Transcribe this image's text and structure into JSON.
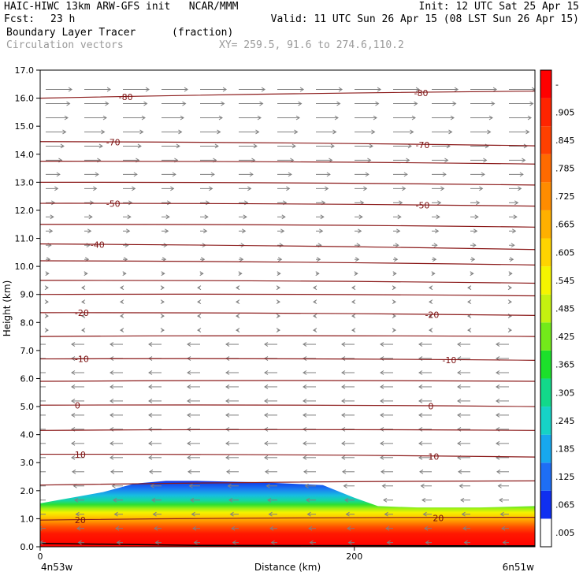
{
  "header": {
    "title_left": "HAIC-HIWC 13km ARW-GFS init   NCAR/MMM",
    "init": "Init: 12 UTC Sat 25 Apr 15",
    "fcst_label": "Fcst:",
    "fcst_value": "23 h",
    "valid": "Valid: 11 UTC Sun 26 Apr 15 (08 LST Sun 26 Apr 15)",
    "field_name": "Boundary Layer Tracer",
    "field_units": "(fraction)",
    "vector_name": "Circulation vectors",
    "xy_text": "XY= 259.5, 91.6 to 274.6,110.2"
  },
  "chart_data": {
    "type": "heatmap",
    "ylabel": "Height (km)",
    "xlabel": "Distance (km)",
    "ylim": [
      0,
      17
    ],
    "xlim": [
      0,
      315
    ],
    "y_ticks": [
      "0.0",
      "1.0",
      "2.0",
      "3.0",
      "4.0",
      "5.0",
      "6.0",
      "7.0",
      "8.0",
      "9.0",
      "10.0",
      "11.0",
      "12.0",
      "13.0",
      "14.0",
      "15.0",
      "16.0",
      "17.0"
    ],
    "x_ticks": [
      {
        "value": 0,
        "label": "0"
      },
      {
        "value": 200,
        "label": "200"
      }
    ],
    "x_endpoints": {
      "left": "4n53w",
      "right": "6n51w"
    },
    "colorbar": {
      "labels": [
        ".005",
        ".065",
        ".125",
        ".185",
        ".245",
        ".305",
        ".365",
        ".425",
        ".485",
        ".545",
        ".605",
        ".665",
        ".725",
        ".785",
        ".845",
        ".905",
        "-"
      ],
      "colors": [
        "#ffffff",
        "#0f2ff0",
        "#1e6ef5",
        "#17a8ee",
        "#16d3c6",
        "#12d98a",
        "#1ce02b",
        "#73ea1a",
        "#c5f210",
        "#f5f500",
        "#ffd400",
        "#ffb000",
        "#ff8c00",
        "#ff6a00",
        "#ff4000",
        "#ff2400",
        "#ff0000"
      ]
    },
    "tracer_top_km": [
      {
        "x": 0,
        "top": 1.55
      },
      {
        "x": 20,
        "top": 1.75
      },
      {
        "x": 40,
        "top": 1.95
      },
      {
        "x": 60,
        "top": 2.25
      },
      {
        "x": 80,
        "top": 2.35
      },
      {
        "x": 100,
        "top": 2.35
      },
      {
        "x": 140,
        "top": 2.3
      },
      {
        "x": 180,
        "top": 2.2
      },
      {
        "x": 200,
        "top": 1.75
      },
      {
        "x": 215,
        "top": 1.45
      },
      {
        "x": 240,
        "top": 1.4
      },
      {
        "x": 280,
        "top": 1.4
      },
      {
        "x": 315,
        "top": 1.45
      }
    ],
    "contours": [
      {
        "value": "80",
        "h_left": 16.0,
        "h_right": 16.25,
        "labels": [
          {
            "x": 50,
            "text": "-80"
          },
          {
            "x": 238,
            "text": "-80"
          }
        ]
      },
      {
        "value": "70",
        "h_left": 14.45,
        "h_right": 14.3,
        "labels": [
          {
            "x": 42,
            "text": "-70"
          },
          {
            "x": 239,
            "text": "-70"
          }
        ]
      },
      {
        "value": "60",
        "h_left": 13.75,
        "h_right": 13.65,
        "labels": []
      },
      {
        "value": "60b",
        "h_left": 13.0,
        "h_right": 12.9,
        "labels": []
      },
      {
        "value": "50",
        "h_left": 12.25,
        "h_right": 12.15,
        "labels": [
          {
            "x": 42,
            "text": "-50"
          },
          {
            "x": 239,
            "text": "-50"
          }
        ]
      },
      {
        "value": "45",
        "h_left": 11.5,
        "h_right": 11.4,
        "labels": []
      },
      {
        "value": "40",
        "h_left": 10.8,
        "h_right": 10.6,
        "labels": [
          {
            "x": 32,
            "text": "-40"
          }
        ]
      },
      {
        "value": "35",
        "h_left": 10.2,
        "h_right": 10.05,
        "labels": []
      },
      {
        "value": "30",
        "h_left": 9.5,
        "h_right": 9.4,
        "labels": []
      },
      {
        "value": "25",
        "h_left": 9.0,
        "h_right": 8.95,
        "labels": []
      },
      {
        "value": "20",
        "h_left": 8.35,
        "h_right": 8.25,
        "labels": [
          {
            "x": 22,
            "text": "-20"
          },
          {
            "x": 245,
            "text": "-20"
          }
        ]
      },
      {
        "value": "15",
        "h_left": 7.5,
        "h_right": 7.5,
        "labels": []
      },
      {
        "value": "10",
        "h_left": 6.7,
        "h_right": 6.65,
        "labels": [
          {
            "x": 22,
            "text": "-10"
          },
          {
            "x": 256,
            "text": "-10"
          }
        ]
      },
      {
        "value": "5",
        "h_left": 5.9,
        "h_right": 5.9,
        "labels": []
      },
      {
        "value": "0",
        "h_left": 5.05,
        "h_right": 5.0,
        "labels": [
          {
            "x": 22,
            "text": "0"
          },
          {
            "x": 247,
            "text": "0"
          }
        ]
      },
      {
        "value": "-5",
        "h_left": 4.15,
        "h_right": 4.15,
        "labels": []
      },
      {
        "value": "-10",
        "h_left": 3.3,
        "h_right": 3.2,
        "labels": [
          {
            "x": 22,
            "text": "10"
          },
          {
            "x": 247,
            "text": "10"
          }
        ]
      },
      {
        "value": "-15",
        "h_left": 2.2,
        "h_right": 2.35,
        "labels": []
      },
      {
        "value": "-20",
        "h_left": 0.95,
        "h_right": 1.05,
        "labels": [
          {
            "x": 22,
            "text": "20"
          },
          {
            "x": 250,
            "text": "20"
          }
        ]
      }
    ]
  }
}
